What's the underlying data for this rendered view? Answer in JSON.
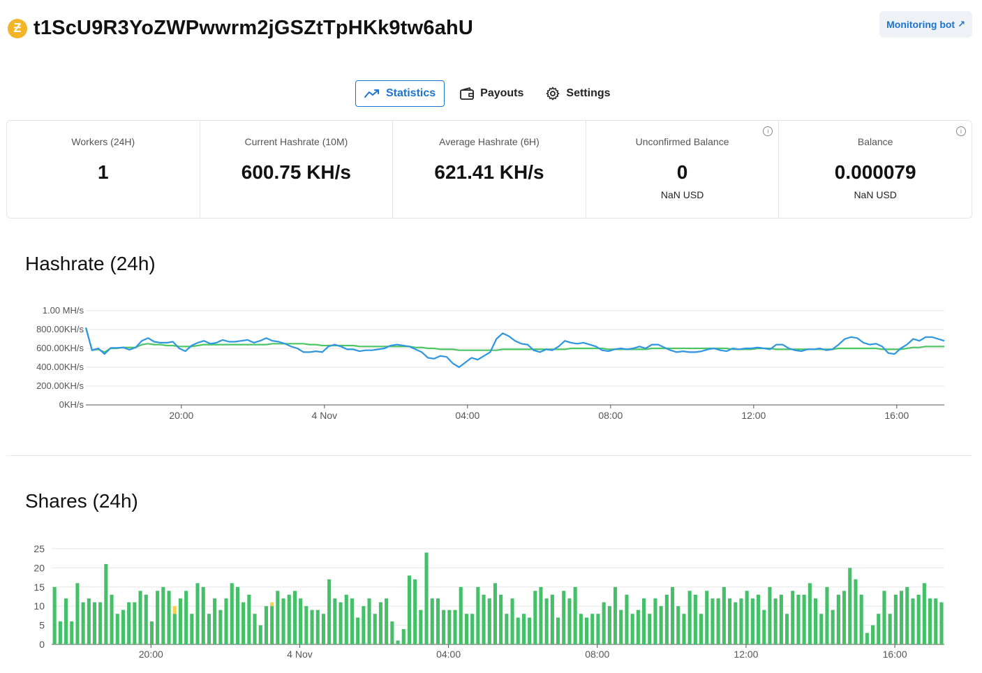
{
  "header": {
    "coin_icon": "zcash-coin-icon",
    "coin_symbol": "Ƶ",
    "address": "t1ScU9R3YoZWPwwrm2jGSZtTpHKk9tw6ahU",
    "monitoring_label": "Monitoring bot",
    "monitoring_arrow": "↗"
  },
  "tabs": [
    {
      "label": "Statistics",
      "icon": "chart-line-icon",
      "active": true
    },
    {
      "label": "Payouts",
      "icon": "wallet-icon",
      "active": false
    },
    {
      "label": "Settings",
      "icon": "gear-icon",
      "active": false
    }
  ],
  "stats": [
    {
      "label": "Workers (24H)",
      "value": "1",
      "sub": ""
    },
    {
      "label": "Current Hashrate (10M)",
      "value": "600.75 KH/s",
      "sub": ""
    },
    {
      "label": "Average Hashrate (6H)",
      "value": "621.41 KH/s",
      "sub": ""
    },
    {
      "label": "Unconfirmed Balance",
      "value": "0",
      "sub": "NaN USD",
      "info": "i"
    },
    {
      "label": "Balance",
      "value": "0.000079",
      "sub": "NaN USD",
      "info": "i"
    }
  ],
  "colors": {
    "accent": "#1b74d1",
    "hashrate_line": "#2e95e3",
    "avg_line": "#4cc563",
    "valid_shares": "#45c069",
    "stale_shares": "#f8d14a"
  },
  "hashrate_chart": {
    "title": "Hashrate (24h)"
  },
  "shares_chart": {
    "title": "Shares (24h)"
  },
  "chart_data": [
    {
      "type": "line",
      "title": "Hashrate (24h)",
      "y_tick_labels": [
        "0KH/s",
        "200.00KH/s",
        "400.00KH/s",
        "600.00KH/s",
        "800.00KH/s",
        "1.00 MH/s"
      ],
      "x_tick_labels": [
        "20:00",
        "4 Nov",
        "04:00",
        "08:00",
        "12:00",
        "16:00"
      ],
      "x_tick_hours": [
        20,
        24,
        28,
        32,
        36,
        40
      ],
      "x_range_hours": [
        17.33,
        41.33
      ],
      "ylim": [
        0,
        1000
      ],
      "y_unit": "KH/s",
      "grid": true,
      "series": [
        {
          "values": [
            820,
            580,
            600,
            540,
            605,
            605,
            610,
            585,
            610,
            680,
            710,
            670,
            660,
            660,
            670,
            600,
            570,
            630,
            660,
            680,
            650,
            660,
            690,
            670,
            670,
            680,
            690,
            660,
            680,
            710,
            680,
            670,
            650,
            620,
            600,
            560,
            560,
            570,
            560,
            620,
            640,
            620,
            590,
            590,
            570,
            580,
            580,
            590,
            600,
            630,
            640,
            630,
            620,
            590,
            560,
            500,
            490,
            520,
            510,
            440,
            400,
            450,
            500,
            480,
            520,
            560,
            700,
            760,
            730,
            680,
            650,
            640,
            580,
            560,
            590,
            580,
            620,
            680,
            660,
            650,
            660,
            640,
            620,
            580,
            570,
            590,
            600,
            590,
            600,
            620,
            600,
            640,
            640,
            610,
            580,
            560,
            570,
            560,
            560,
            570,
            590,
            600,
            580,
            570,
            600,
            590,
            600,
            600,
            610,
            600,
            590,
            640,
            640,
            600,
            580,
            570,
            590,
            590,
            600,
            580,
            590,
            640,
            700,
            720,
            710,
            660,
            640,
            650,
            620,
            550,
            540,
            600,
            640,
            700,
            680,
            720,
            720,
            700,
            680
          ]
        },
        {
          "values": [
            820,
            580,
            590,
            560,
            600,
            600,
            610,
            610,
            610,
            640,
            650,
            640,
            640,
            630,
            630,
            620,
            620,
            620,
            630,
            640,
            640,
            640,
            640,
            640,
            640,
            640,
            640,
            640,
            640,
            640,
            650,
            650,
            650,
            650,
            650,
            650,
            640,
            640,
            630,
            630,
            630,
            630,
            630,
            630,
            620,
            620,
            620,
            620,
            620,
            620,
            620,
            620,
            620,
            610,
            610,
            600,
            600,
            590,
            590,
            590,
            580,
            580,
            580,
            580,
            580,
            580,
            580,
            590,
            590,
            590,
            590,
            590,
            590,
            590,
            590,
            590,
            590,
            590,
            600,
            600,
            600,
            600,
            600,
            600,
            590,
            590,
            590,
            590,
            590,
            590,
            590,
            600,
            600,
            600,
            600,
            600,
            600,
            600,
            600,
            600,
            600,
            600,
            600,
            600,
            590,
            590,
            590,
            590,
            600,
            600,
            600,
            590,
            590,
            590,
            590,
            590,
            590,
            590,
            590,
            590,
            590,
            600,
            600,
            600,
            600,
            600,
            600,
            600,
            590,
            590,
            590,
            590,
            600,
            610,
            610,
            620,
            620,
            620,
            620
          ]
        }
      ]
    },
    {
      "type": "bar",
      "title": "Shares (24h)",
      "y_tick_labels": [
        "0",
        "5",
        "10",
        "15",
        "20",
        "25"
      ],
      "x_tick_labels": [
        "20:00",
        "4 Nov",
        "04:00",
        "08:00",
        "12:00",
        "16:00"
      ],
      "x_tick_hours": [
        20,
        24,
        28,
        32,
        36,
        40
      ],
      "x_range_hours": [
        17.33,
        41.33
      ],
      "ylim": [
        0,
        25
      ],
      "stacked": true,
      "grid": true,
      "series": [
        {
          "values": [
            15,
            6,
            12,
            6,
            16,
            11,
            12,
            11,
            11,
            21,
            13,
            8,
            9,
            11,
            11,
            14,
            13,
            6,
            14,
            15,
            14,
            8,
            12,
            14,
            8,
            16,
            15,
            8,
            12,
            9,
            12,
            16,
            15,
            11,
            13,
            8,
            5,
            10,
            10,
            14,
            12,
            13,
            14,
            12,
            10,
            9,
            9,
            8,
            17,
            12,
            11,
            13,
            12,
            7,
            10,
            12,
            8,
            11,
            12,
            6,
            1,
            4,
            18,
            17,
            9,
            24,
            12,
            12,
            9,
            9,
            9,
            15,
            8,
            8,
            15,
            13,
            12,
            16,
            13,
            8,
            12,
            7,
            8,
            7,
            14,
            15,
            12,
            13,
            7,
            14,
            12,
            15,
            8,
            7,
            8,
            8,
            11,
            10,
            15,
            9,
            13,
            8,
            9,
            12,
            8,
            12,
            10,
            13,
            15,
            10,
            8,
            14,
            13,
            8,
            14,
            12,
            12,
            15,
            12,
            11,
            12,
            14,
            12,
            13,
            9,
            15,
            12,
            13,
            8,
            14,
            13,
            13,
            16,
            12,
            8,
            15,
            9,
            13,
            14,
            20,
            17,
            13,
            3,
            5,
            8,
            14,
            8,
            13,
            14,
            15,
            12,
            13,
            16,
            12,
            12,
            11
          ],
          "name": ""
        },
        {
          "values": [
            0,
            0,
            0,
            0,
            0,
            0,
            0,
            0,
            0,
            0,
            0,
            0,
            0,
            0,
            0,
            0,
            0,
            0,
            0,
            0,
            0,
            2,
            0,
            0,
            0,
            0,
            0,
            0,
            0,
            0,
            0,
            0,
            0,
            0,
            0,
            0,
            0,
            0,
            1,
            0,
            0,
            0,
            0,
            0,
            0,
            0,
            0,
            0,
            0,
            0,
            0,
            0,
            0,
            0,
            0,
            0,
            0,
            0,
            0,
            0,
            0,
            0,
            0,
            0,
            0,
            0,
            0,
            0,
            0,
            0,
            0,
            0,
            0,
            0,
            0,
            0,
            0,
            0,
            0,
            0,
            0,
            0,
            0,
            0,
            0,
            0,
            0,
            0,
            0,
            0,
            0,
            0,
            0,
            0,
            0,
            0,
            0,
            0,
            0,
            0,
            0,
            0,
            0,
            0,
            0,
            0,
            0,
            0,
            0,
            0,
            0,
            0,
            0,
            0,
            0,
            0,
            0,
            0,
            0,
            0,
            0,
            0,
            0,
            0,
            0,
            0,
            0,
            0,
            0,
            0,
            0,
            0,
            0,
            0,
            0,
            0,
            0,
            0,
            0,
            0,
            0,
            0,
            0,
            0,
            0,
            0,
            0,
            0,
            0,
            0,
            0,
            0,
            0,
            0,
            0,
            0
          ],
          "name": ""
        }
      ]
    }
  ]
}
